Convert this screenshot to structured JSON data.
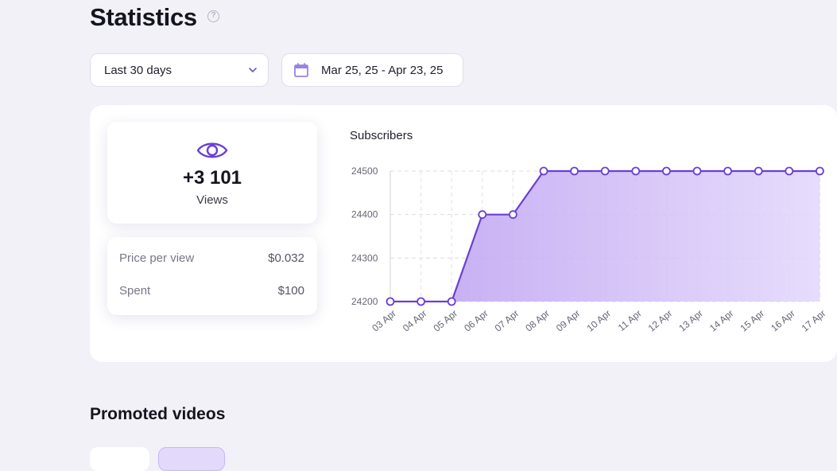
{
  "page": {
    "title": "Statistics",
    "help_icon": "question-circle-icon"
  },
  "filters": {
    "period": {
      "value": "Last 30 days",
      "icon": "chevron-down-icon"
    },
    "date_range": {
      "value": "Mar 25, 25 - Apr 23, 25",
      "icon": "calendar-icon"
    }
  },
  "views_card": {
    "icon": "eye-icon",
    "value": "+3 101",
    "label": "Views"
  },
  "cost_card": {
    "rows": [
      {
        "label": "Price per view",
        "value": "$0.032"
      },
      {
        "label": "Spent",
        "value": "$100"
      }
    ]
  },
  "colors": {
    "accent": "#6a3fd6",
    "area_fill": "#c9b3f3",
    "background": "#f1f1f7"
  },
  "chart_data": {
    "type": "area",
    "title": "Subscribers",
    "xlabel": "",
    "ylabel": "",
    "x": [
      "03 Apr",
      "04 Apr",
      "05 Apr",
      "06 Apr",
      "07 Apr",
      "08 Apr",
      "09 Apr",
      "10 Apr",
      "11 Apr",
      "12 Apr",
      "13 Apr",
      "14 Apr",
      "15 Apr",
      "16 Apr",
      "17 Apr"
    ],
    "series": [
      {
        "values": [
          24200,
          24200,
          24200,
          24400,
          24400,
          24500,
          24500,
          24500,
          24500,
          24500,
          24500,
          24500,
          24500,
          24500,
          24500
        ]
      }
    ],
    "y_ticks": [
      24200,
      24300,
      24400,
      24500
    ],
    "ylim": [
      24200,
      24500
    ],
    "grid": true,
    "legend": "none"
  },
  "sections": {
    "promoted_videos": "Promoted videos"
  }
}
